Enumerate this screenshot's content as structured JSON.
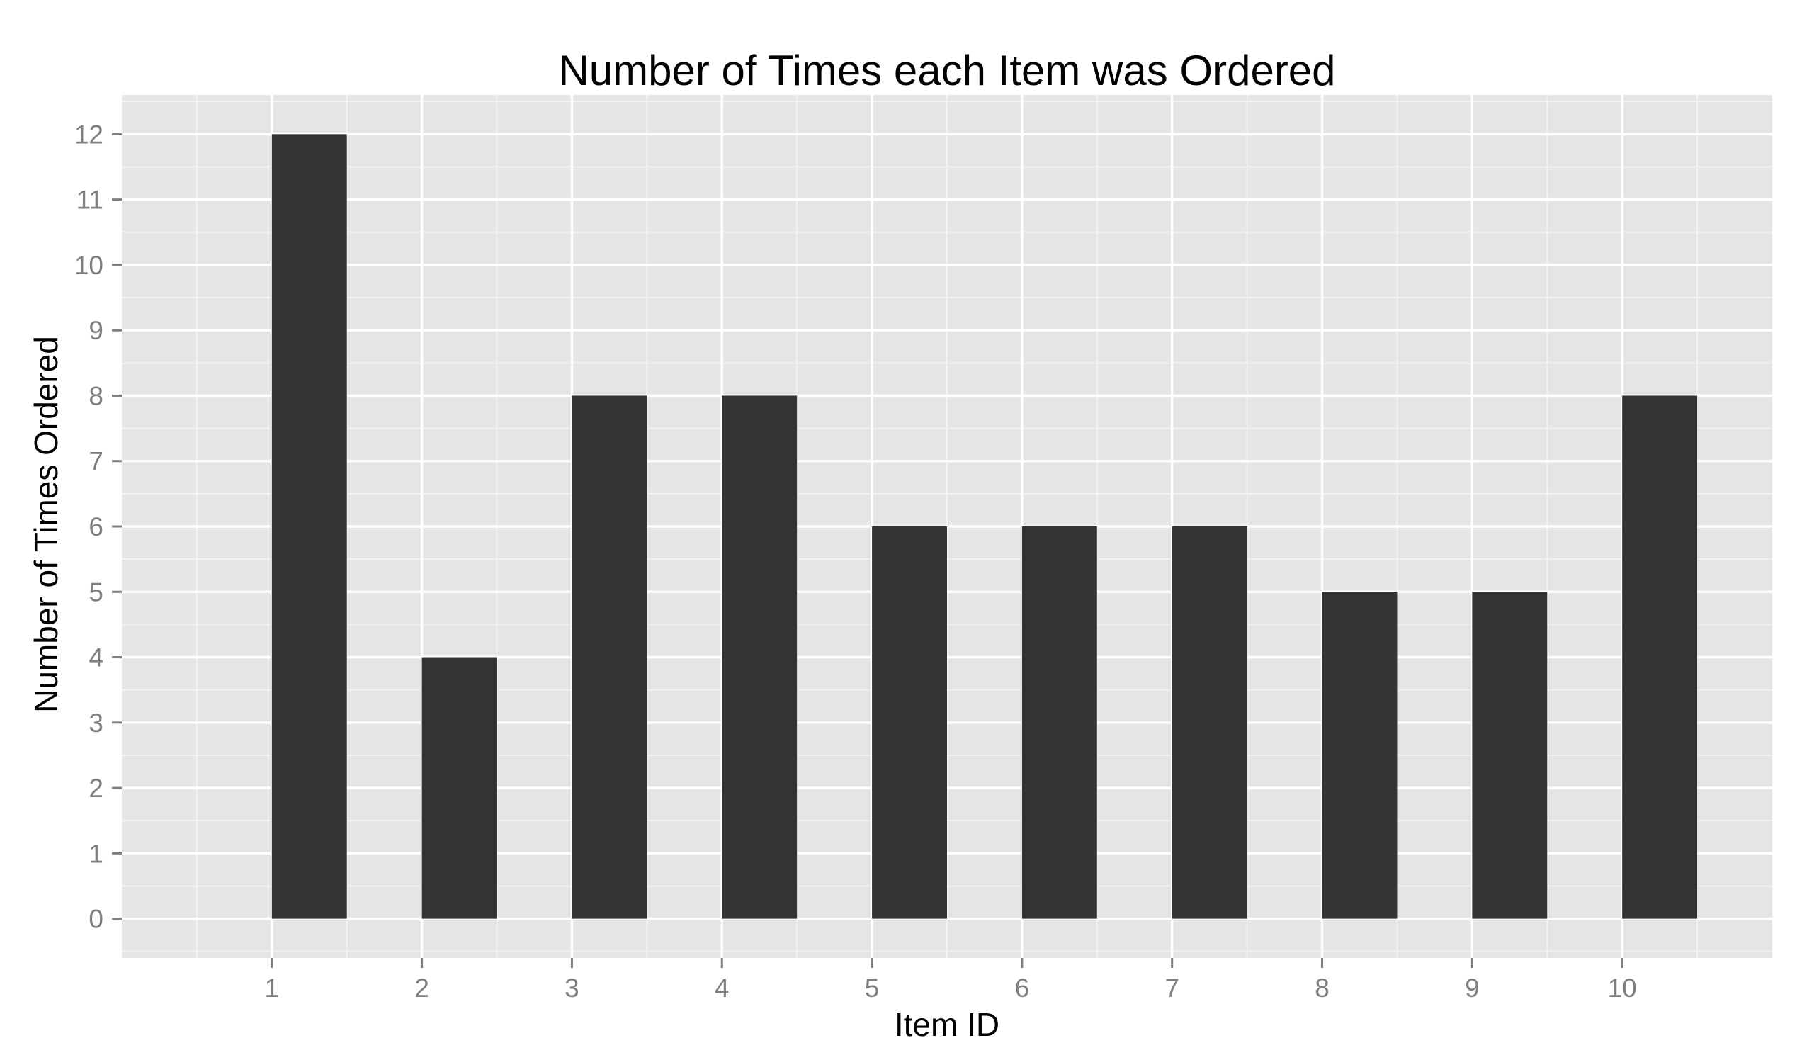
{
  "colors": {
    "panel_background": "#e5e5e5",
    "major_grid": "#ffffff",
    "minor_grid": "#f2f2f2",
    "bar_fill": "#333333",
    "tick_text": "#7f7f7f",
    "title_text": "#000000"
  },
  "chart_data": {
    "type": "bar",
    "title": "Number of Times each Item was Ordered",
    "xlabel": "Item ID",
    "ylabel": "Number of Times Ordered",
    "categories": [
      "1",
      "2",
      "3",
      "4",
      "5",
      "6",
      "7",
      "8",
      "9",
      "10"
    ],
    "x": [
      1,
      2,
      3,
      4,
      5,
      6,
      7,
      8,
      9,
      10
    ],
    "values": [
      12,
      4,
      8,
      8,
      6,
      6,
      6,
      5,
      5,
      8
    ],
    "bar_width": 0.5,
    "bar_offset": 0.25,
    "xlim": [
      0,
      11
    ],
    "ylim": [
      -0.6,
      12.6
    ],
    "yticks": [
      0,
      1,
      2,
      3,
      4,
      5,
      6,
      7,
      8,
      9,
      10,
      11,
      12
    ],
    "xticks": [
      1,
      2,
      3,
      4,
      5,
      6,
      7,
      8,
      9,
      10
    ],
    "grid": true,
    "legend": "none"
  }
}
